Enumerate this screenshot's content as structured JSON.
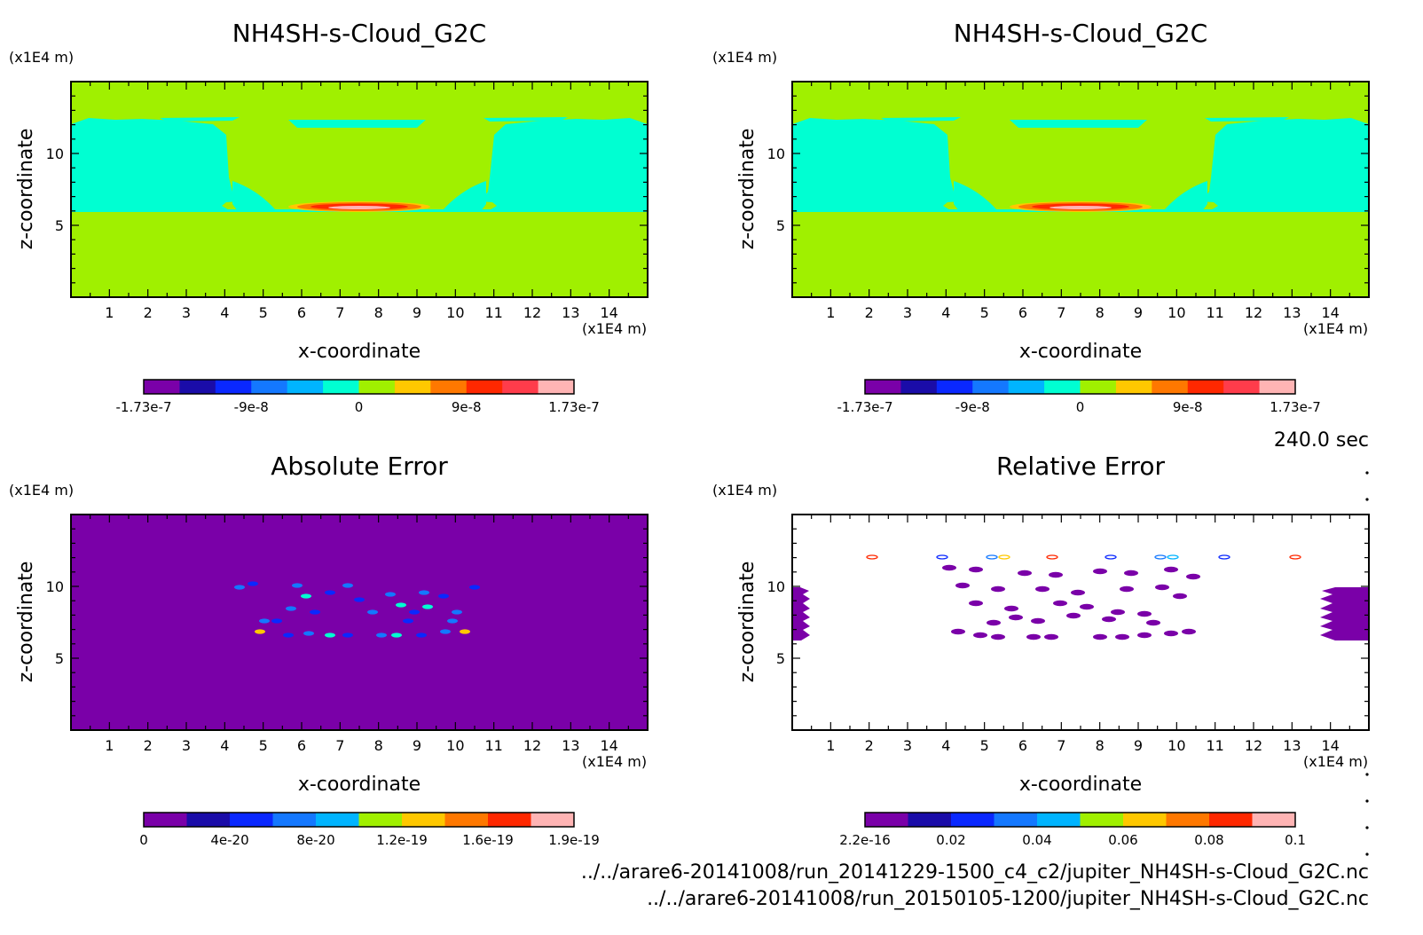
{
  "colors": [
    "#7a00a8",
    "#1a0ca8",
    "#0a28ff",
    "#1478ff",
    "#00b4ff",
    "#00ffd2",
    "#a0f000",
    "#ffc800",
    "#ff7800",
    "#ff2800",
    "#ff3c4b",
    "#ffb4b4"
  ],
  "time_label": "240.0 sec",
  "paths": [
    "../../arare6-20141008/run_20141229-1500_c4_c2/jupiter_NH4SH-s-Cloud_G2C.nc",
    "../../arare6-20141008/run_20150105-1200/jupiter_NH4SH-s-Cloud_G2C.nc"
  ],
  "chart_data": [
    {
      "type": "heatmap",
      "title": "NH4SH-s-Cloud_G2C",
      "xlabel": "x-coordinate",
      "ylabel": "z-coordinate",
      "xunit": "(x1E4 m)",
      "yunit": "(x1E4 m)",
      "xlim": [
        0,
        15
      ],
      "ylim": [
        0,
        15
      ],
      "xticks": [
        1,
        2,
        3,
        4,
        5,
        6,
        7,
        8,
        9,
        10,
        11,
        12,
        13,
        14
      ],
      "yticks": [
        5,
        10
      ],
      "colorbar": {
        "ticks": [
          "-1.73e-7",
          "-9e-8",
          "0",
          "9e-8",
          "1.73e-7"
        ],
        "levels": 11
      }
    },
    {
      "type": "heatmap",
      "title": "NH4SH-s-Cloud_G2C",
      "xlabel": "x-coordinate",
      "ylabel": "z-coordinate",
      "xunit": "(x1E4 m)",
      "yunit": "(x1E4 m)",
      "xlim": [
        0,
        15
      ],
      "ylim": [
        0,
        15
      ],
      "xticks": [
        1,
        2,
        3,
        4,
        5,
        6,
        7,
        8,
        9,
        10,
        11,
        12,
        13,
        14
      ],
      "yticks": [
        5,
        10
      ],
      "colorbar": {
        "ticks": [
          "-1.73e-7",
          "-9e-8",
          "0",
          "9e-8",
          "1.73e-7"
        ],
        "levels": 11
      }
    },
    {
      "type": "heatmap",
      "title": "Absolute Error",
      "xlabel": "x-coordinate",
      "ylabel": "z-coordinate",
      "xunit": "(x1E4 m)",
      "yunit": "(x1E4 m)",
      "xlim": [
        0,
        15
      ],
      "ylim": [
        0,
        15
      ],
      "xticks": [
        1,
        2,
        3,
        4,
        5,
        6,
        7,
        8,
        9,
        10,
        11,
        12,
        13,
        14
      ],
      "yticks": [
        5,
        10
      ],
      "colorbar": {
        "ticks": [
          "0",
          "4e-20",
          "8e-20",
          "1.2e-19",
          "1.6e-19",
          "1.9e-19"
        ],
        "levels": 10
      }
    },
    {
      "type": "heatmap",
      "title": "Relative Error",
      "xlabel": "x-coordinate",
      "ylabel": "z-coordinate",
      "xunit": "(x1E4 m)",
      "yunit": "(x1E4 m)",
      "xlim": [
        0,
        15
      ],
      "ylim": [
        0,
        15
      ],
      "xticks": [
        1,
        2,
        3,
        4,
        5,
        6,
        7,
        8,
        9,
        10,
        11,
        12,
        13,
        14
      ],
      "yticks": [
        5,
        10
      ],
      "colorbar": {
        "ticks": [
          "2.2e-16",
          "0.02",
          "0.04",
          "0.06",
          "0.08",
          "0.1"
        ],
        "levels": 10
      }
    }
  ]
}
